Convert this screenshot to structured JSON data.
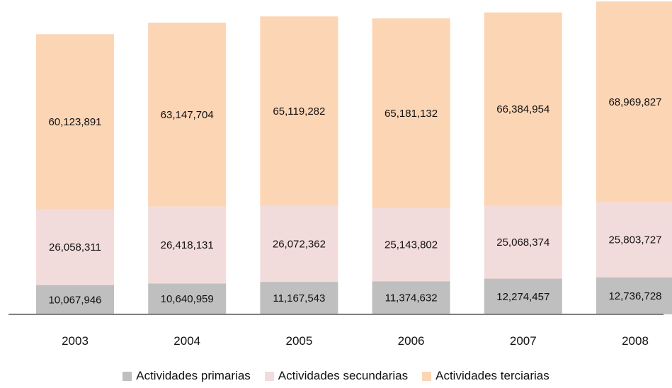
{
  "chart_data": {
    "type": "bar",
    "stacked": true,
    "categories": [
      "2003",
      "2004",
      "2005",
      "2006",
      "2007",
      "2008"
    ],
    "series": [
      {
        "name": "Actividades primarias",
        "color": "#bfbfbf",
        "values": [
          10067946,
          10640959,
          11167543,
          11374632,
          12274457,
          12736728
        ],
        "labels": [
          "10,067,946",
          "10,640,959",
          "11,167,543",
          "11,374,632",
          "12,274,457",
          "12,736,728"
        ]
      },
      {
        "name": "Actividades secundarias",
        "color": "#f2dcdb",
        "values": [
          26058311,
          26418131,
          26072362,
          25143802,
          25068374,
          25803727
        ],
        "labels": [
          "26,058,311",
          "26,418,131",
          "26,072,362",
          "25,143,802",
          "25,068,374",
          "25,803,727"
        ]
      },
      {
        "name": "Actividades terciarias",
        "color": "#fcd5b5",
        "values": [
          60123891,
          63147704,
          65119282,
          65181132,
          66384954,
          68969827
        ],
        "labels": [
          "60,123,891",
          "63,147,704",
          "65,119,282",
          "65,181,132",
          "66,384,954",
          "68,969,827"
        ]
      }
    ],
    "ylim": [
      0,
      108000000
    ],
    "grid": false,
    "legend": "bottom"
  }
}
